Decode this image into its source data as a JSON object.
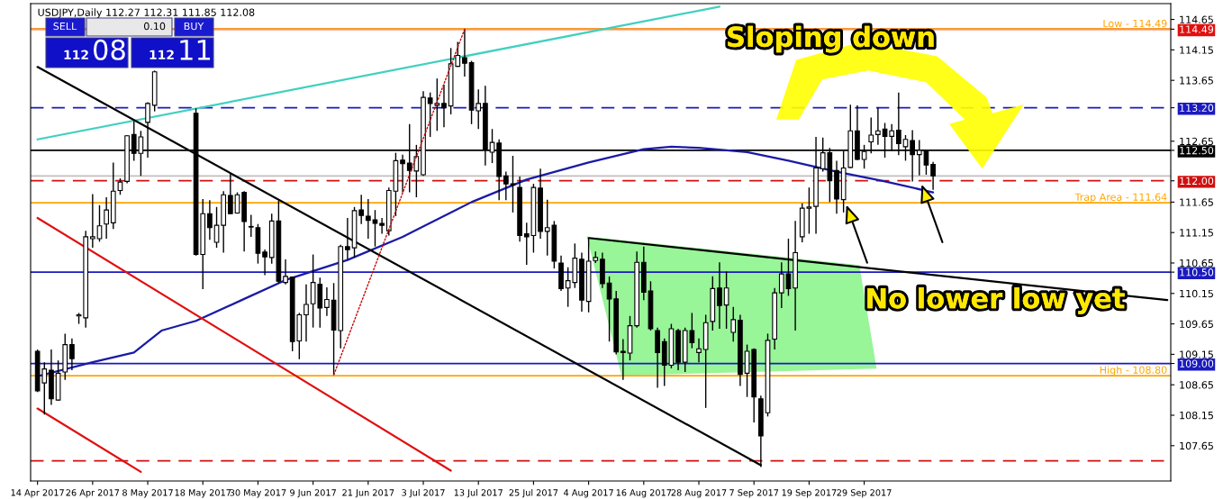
{
  "chart_data": {
    "type": "candlestick",
    "title": "USDJPY,Daily 112.27 112.31 111.85 112.08",
    "categories": [
      "14 Apr 2017",
      null,
      null,
      null,
      null,
      null,
      null,
      null,
      "26 Apr 2017",
      null,
      null,
      null,
      null,
      null,
      null,
      null,
      "8 May 2017",
      null,
      null,
      null,
      null,
      null,
      null,
      null,
      "18 May 2017",
      null,
      null,
      null,
      null,
      null,
      null,
      null,
      "30 May 2017",
      null,
      null,
      null,
      null,
      null,
      null,
      null,
      "9 Jun 2017",
      null,
      null,
      null,
      null,
      null,
      null,
      null,
      "21 Jun 2017",
      null,
      null,
      null,
      null,
      null,
      null,
      null,
      "3 Jul 2017",
      null,
      null,
      null,
      null,
      null,
      null,
      null,
      "13 Jul 2017",
      null,
      null,
      null,
      null,
      null,
      null,
      null,
      "25 Jul 2017",
      null,
      null,
      null,
      null,
      null,
      null,
      null,
      "4 Aug 2017",
      null,
      null,
      null,
      null,
      null,
      null,
      null,
      "16 Aug 2017",
      null,
      null,
      null,
      null,
      null,
      null,
      null,
      "28 Aug 2017",
      null,
      null,
      null,
      null,
      null,
      null,
      null,
      "7 Sep 2017",
      null,
      null,
      null,
      null,
      null,
      null,
      null,
      "19 Sep 2017",
      null,
      null,
      null,
      null,
      null,
      null,
      null,
      "29 Sep 2017",
      null,
      null,
      null,
      null,
      null,
      null,
      null,
      null,
      null,
      null,
      null,
      null,
      null,
      null,
      null,
      null,
      null,
      null,
      null,
      null,
      null,
      null,
      null,
      null,
      null,
      null,
      null,
      null,
      null,
      null,
      null,
      null,
      null,
      null,
      null,
      null,
      null,
      null,
      null,
      null,
      null,
      null,
      null,
      null
    ],
    "ohlc": [
      [
        109.2,
        109.23,
        108.53,
        108.55
      ],
      [
        108.68,
        109.02,
        108.16,
        108.91
      ],
      [
        108.89,
        109.23,
        108.32,
        108.42
      ],
      [
        108.4,
        109.05,
        108.39,
        108.84
      ],
      [
        108.86,
        109.49,
        108.73,
        109.31
      ],
      [
        109.31,
        109.41,
        108.89,
        109.08
      ],
      [
        109.78,
        109.83,
        109.65,
        109.8
      ],
      [
        109.75,
        111.18,
        109.59,
        111.08
      ],
      [
        111.05,
        111.78,
        110.9,
        111.08
      ],
      [
        111.05,
        111.6,
        111.0,
        111.26
      ],
      [
        111.29,
        111.73,
        111.05,
        111.52
      ],
      [
        111.31,
        112.3,
        111.21,
        111.83
      ],
      [
        111.84,
        112.04,
        111.77,
        111.98
      ],
      [
        111.99,
        112.75,
        111.96,
        112.74
      ],
      [
        112.76,
        112.98,
        112.33,
        112.45
      ],
      [
        112.45,
        112.82,
        112.08,
        112.72
      ],
      [
        112.96,
        113.29,
        112.38,
        113.27
      ],
      [
        113.24,
        113.81,
        113.14,
        113.79
      ],
      null,
      null,
      null,
      null,
      null,
      [
        113.11,
        113.19,
        110.77,
        110.79
      ],
      [
        110.79,
        111.7,
        110.22,
        111.46
      ],
      [
        111.46,
        111.68,
        111.03,
        111.23
      ],
      [
        110.99,
        111.57,
        110.9,
        111.27
      ],
      [
        111.27,
        111.83,
        110.82,
        111.77
      ],
      [
        111.76,
        112.12,
        111.46,
        111.46
      ],
      [
        111.47,
        111.81,
        111.46,
        111.77
      ],
      [
        111.81,
        111.83,
        110.84,
        111.33
      ],
      [
        111.25,
        111.44,
        111.08,
        111.24
      ],
      [
        111.23,
        111.29,
        110.64,
        110.81
      ],
      [
        110.83,
        110.87,
        110.45,
        110.75
      ],
      [
        110.74,
        111.46,
        110.64,
        111.34
      ],
      [
        111.34,
        111.67,
        110.32,
        110.35
      ],
      [
        110.33,
        110.71,
        110.3,
        110.43
      ],
      [
        110.42,
        110.43,
        109.2,
        109.36
      ],
      [
        109.37,
        109.83,
        109.07,
        109.8
      ],
      [
        109.8,
        110.3,
        109.36,
        109.97
      ],
      [
        109.98,
        110.79,
        109.59,
        110.33
      ],
      [
        110.3,
        110.41,
        109.59,
        109.91
      ],
      [
        109.92,
        110.25,
        109.78,
        110.05
      ],
      [
        110.04,
        110.32,
        108.81,
        109.55
      ],
      [
        109.54,
        110.95,
        109.25,
        110.92
      ],
      [
        110.92,
        111.39,
        110.71,
        110.87
      ],
      [
        110.9,
        111.57,
        110.74,
        111.51
      ],
      [
        111.52,
        111.77,
        111.29,
        111.43
      ],
      [
        111.42,
        111.7,
        111.05,
        111.35
      ],
      [
        111.36,
        111.52,
        110.92,
        111.3
      ],
      [
        111.3,
        111.39,
        111.13,
        111.27
      ],
      [
        111.18,
        111.89,
        111.1,
        111.84
      ],
      [
        111.83,
        112.46,
        111.42,
        112.33
      ],
      [
        112.34,
        112.43,
        111.81,
        112.28
      ],
      [
        112.29,
        112.93,
        111.81,
        112.17
      ],
      [
        112.16,
        112.59,
        111.73,
        112.4
      ],
      [
        112.1,
        113.47,
        112.08,
        113.37
      ],
      [
        113.36,
        113.45,
        112.72,
        113.27
      ],
      [
        113.24,
        113.68,
        112.82,
        113.27
      ],
      [
        113.27,
        113.58,
        112.88,
        113.2
      ],
      [
        113.23,
        114.18,
        113.09,
        113.92
      ],
      [
        113.88,
        114.28,
        113.87,
        114.06
      ],
      [
        114.02,
        114.49,
        113.71,
        113.93
      ],
      [
        113.94,
        113.97,
        112.93,
        113.16
      ],
      [
        113.15,
        113.5,
        112.85,
        113.27
      ],
      [
        113.27,
        113.56,
        112.25,
        112.52
      ],
      [
        112.47,
        112.85,
        112.29,
        112.63
      ],
      [
        112.62,
        112.68,
        111.68,
        112.07
      ],
      [
        112.08,
        112.15,
        111.68,
        111.95
      ],
      [
        111.95,
        112.41,
        111.48,
        111.93
      ],
      [
        111.89,
        112.07,
        111.0,
        111.1
      ],
      [
        111.13,
        111.31,
        110.62,
        111.08
      ],
      [
        111.1,
        111.95,
        110.82,
        111.89
      ],
      [
        111.88,
        112.2,
        111.05,
        111.17
      ],
      [
        111.17,
        111.69,
        110.77,
        111.23
      ],
      [
        111.27,
        111.34,
        110.56,
        110.68
      ],
      [
        110.65,
        110.77,
        110.19,
        110.23
      ],
      [
        110.24,
        110.58,
        109.93,
        110.36
      ],
      [
        110.33,
        110.97,
        110.24,
        110.73
      ],
      [
        110.71,
        110.82,
        109.85,
        110.04
      ],
      [
        110.02,
        111.05,
        109.84,
        110.68
      ],
      [
        110.69,
        110.84,
        110.65,
        110.74
      ],
      [
        110.71,
        110.82,
        110.24,
        110.31
      ],
      [
        110.32,
        110.43,
        109.36,
        110.06
      ],
      [
        110.06,
        110.19,
        109.15,
        109.19
      ],
      [
        109.2,
        109.4,
        108.73,
        109.18
      ],
      [
        109.17,
        109.78,
        109.05,
        109.62
      ],
      [
        109.62,
        110.84,
        109.59,
        110.66
      ],
      [
        110.66,
        110.92,
        110.04,
        110.17
      ],
      [
        110.19,
        110.35,
        109.54,
        109.57
      ],
      [
        109.54,
        109.59,
        108.6,
        109.18
      ],
      [
        109.36,
        109.41,
        108.63,
        108.97
      ],
      [
        108.97,
        109.65,
        108.92,
        109.57
      ],
      [
        109.54,
        109.57,
        108.89,
        109.02
      ],
      [
        109.02,
        109.59,
        108.86,
        109.54
      ],
      [
        109.54,
        109.83,
        109.25,
        109.34
      ],
      [
        109.18,
        109.41,
        109.02,
        109.24
      ],
      [
        109.23,
        109.8,
        108.27,
        109.67
      ],
      [
        109.69,
        110.43,
        109.54,
        110.23
      ],
      [
        110.24,
        110.66,
        109.57,
        109.95
      ],
      [
        109.96,
        110.51,
        109.57,
        110.24
      ],
      [
        109.51,
        109.93,
        109.36,
        109.72
      ],
      [
        109.71,
        109.8,
        108.63,
        108.82
      ],
      [
        108.84,
        109.31,
        108.45,
        109.2
      ],
      [
        109.23,
        109.25,
        108.03,
        108.45
      ],
      [
        108.42,
        108.47,
        107.3,
        107.81
      ],
      [
        108.19,
        109.49,
        108.13,
        109.38
      ],
      [
        109.4,
        110.24,
        109.23,
        110.16
      ],
      [
        110.16,
        110.66,
        109.91,
        110.47
      ],
      [
        110.47,
        111.05,
        110.11,
        110.23
      ],
      [
        110.24,
        111.34,
        109.54,
        110.82
      ],
      [
        111.08,
        111.63,
        110.99,
        111.55
      ],
      [
        111.55,
        111.89,
        111.13,
        111.57
      ],
      [
        111.58,
        112.72,
        111.13,
        112.21
      ],
      [
        112.2,
        112.71,
        112.15,
        112.46
      ],
      [
        112.46,
        112.54,
        111.65,
        112.0
      ],
      [
        112.17,
        112.33,
        111.46,
        111.7
      ],
      [
        111.69,
        112.49,
        111.48,
        112.21
      ],
      [
        112.22,
        113.25,
        112.21,
        112.82
      ],
      [
        112.82,
        113.24,
        112.34,
        112.35
      ],
      [
        112.35,
        112.59,
        112.2,
        112.48
      ],
      [
        112.64,
        113.04,
        112.45,
        112.75
      ],
      [
        112.76,
        113.2,
        112.59,
        112.82
      ],
      [
        112.85,
        112.95,
        112.38,
        112.73
      ],
      [
        112.73,
        112.93,
        112.49,
        112.82
      ],
      [
        112.83,
        113.45,
        112.42,
        112.61
      ],
      [
        112.56,
        112.75,
        112.33,
        112.68
      ],
      [
        112.66,
        112.83,
        111.99,
        112.43
      ],
      [
        112.43,
        112.67,
        112.09,
        112.5
      ],
      [
        112.49,
        112.51,
        112.1,
        112.26
      ],
      [
        112.27,
        112.31,
        111.85,
        112.08
      ],
      null,
      null,
      null,
      null,
      null,
      null,
      null,
      null,
      null,
      null,
      null,
      null,
      null,
      null,
      null,
      null,
      null,
      null,
      null,
      null,
      null,
      null,
      null,
      null,
      null,
      null,
      null,
      null,
      null,
      null,
      null,
      null,
      null,
      null
    ],
    "series": [
      {
        "type": "line",
        "color": "#1a1aa6",
        "values": [
          108.79,
          null,
          null,
          null,
          null,
          null,
          null,
          null,
          109.02,
          null,
          null,
          null,
          null,
          null,
          109.18,
          null,
          null,
          null,
          109.54,
          null,
          null,
          null,
          null,
          109.7,
          null,
          null,
          null,
          null,
          null,
          null,
          110.06,
          null,
          null,
          null,
          null,
          null,
          110.37,
          null,
          null,
          null,
          null,
          null,
          null,
          null,
          null,
          110.7,
          null,
          null,
          null,
          null,
          null,
          null,
          null,
          111.08,
          null,
          null,
          null,
          null,
          null,
          null,
          null,
          null,
          null,
          111.65,
          null,
          null,
          null,
          null,
          null,
          null,
          null,
          112.02,
          null,
          null,
          null,
          null,
          null,
          null,
          null,
          null,
          112.3,
          null,
          null,
          null,
          null,
          null,
          null,
          null,
          112.52,
          null,
          null,
          null,
          112.56,
          null,
          null,
          null,
          112.54,
          null,
          null,
          null,
          null,
          null,
          null,
          112.47,
          null,
          null,
          null,
          null,
          null,
          112.33,
          null,
          null,
          null,
          null,
          null,
          null,
          112.15,
          null,
          null,
          null,
          null,
          null,
          null,
          111.99,
          null,
          null,
          null,
          null,
          null,
          null,
          111.81,
          null,
          null,
          null,
          null,
          null,
          null,
          null,
          null,
          null,
          null,
          null,
          null,
          null,
          null,
          null,
          null,
          null,
          null,
          null,
          null,
          null,
          null,
          null,
          null,
          null,
          null,
          null,
          null,
          null,
          null,
          null,
          null,
          null,
          null
        ]
      },
      {
        "type": "line",
        "color": "#40d0c0",
        "values": [
          112.68,
          null,
          null,
          null,
          null,
          null,
          null,
          null,
          null,
          null,
          null,
          null,
          null,
          null,
          null,
          null,
          null,
          null,
          null,
          null,
          null,
          null,
          null,
          null,
          null,
          null,
          null,
          null,
          null,
          null,
          null,
          null,
          null,
          null,
          null,
          null,
          null,
          null,
          null,
          null,
          null,
          null,
          null,
          null,
          null,
          null,
          null,
          null,
          null,
          null,
          null,
          null,
          null,
          null,
          null,
          null,
          null,
          null,
          null,
          null,
          null,
          null,
          null,
          null,
          null,
          null,
          null,
          null,
          null,
          null,
          null,
          null,
          null,
          null,
          null,
          null,
          null,
          null,
          null,
          null,
          null,
          null,
          null,
          null,
          null,
          null,
          null,
          null,
          null,
          null,
          null,
          null,
          null,
          null,
          null,
          null,
          null,
          null,
          null,
          114.86,
          null,
          null,
          null,
          null,
          null,
          null,
          null,
          null,
          null,
          null,
          null,
          null,
          null,
          null,
          null,
          null,
          null,
          null,
          null,
          null,
          null,
          null,
          null,
          null,
          null,
          null,
          null,
          null,
          null,
          null,
          null,
          null,
          null,
          null,
          null,
          null,
          null,
          null,
          null,
          null,
          null,
          null,
          null,
          null,
          null,
          null,
          null,
          null,
          null,
          null,
          null,
          null,
          null,
          null,
          null,
          null,
          null,
          null,
          null,
          null,
          null,
          null,
          null,
          null,
          null
        ]
      },
      {
        "type": "line",
        "color": "#000000",
        "values": [
          113.87,
          null,
          null,
          null,
          null,
          null,
          null,
          null,
          null,
          null,
          null,
          null,
          null,
          null,
          null,
          null,
          null,
          null,
          null,
          null,
          null,
          null,
          null,
          null,
          null,
          null,
          null,
          null,
          null,
          null,
          null,
          null,
          null,
          null,
          null,
          null,
          null,
          null,
          null,
          null,
          null,
          null,
          null,
          null,
          null,
          null,
          null,
          null,
          null,
          null,
          null,
          null,
          null,
          null,
          null,
          null,
          null,
          null,
          null,
          null,
          null,
          null,
          null,
          null,
          null,
          null,
          null,
          null,
          null,
          null,
          null,
          null,
          null,
          null,
          null,
          null,
          null,
          null,
          null,
          null,
          null,
          null,
          null,
          null,
          null,
          null,
          null,
          null,
          null,
          null,
          null,
          null,
          null,
          null,
          null,
          null,
          null,
          null,
          null,
          null,
          null,
          null,
          null,
          null,
          null,
          107.33,
          null,
          null,
          null,
          null,
          null,
          null,
          null,
          null,
          null,
          null,
          null,
          null,
          null,
          null,
          null,
          null,
          null,
          null,
          null,
          null,
          null,
          null,
          null,
          null,
          null,
          null,
          null,
          null,
          null,
          null,
          null,
          null,
          null,
          null,
          null,
          null,
          null,
          null,
          null,
          null,
          null,
          null,
          null,
          null,
          null,
          null,
          null,
          null,
          null,
          null,
          null,
          null,
          null,
          null,
          null,
          null,
          null,
          null,
          null
        ]
      },
      {
        "type": "line",
        "color": "#e01010",
        "values": [
          111.39,
          null,
          null,
          null,
          null,
          null,
          null,
          null,
          null,
          null,
          null,
          null,
          null,
          null,
          null,
          null,
          null,
          null,
          null,
          null,
          null,
          null,
          null,
          null,
          null,
          null,
          null,
          null,
          null,
          null,
          null,
          null,
          null,
          null,
          null,
          null,
          null,
          null,
          null,
          null,
          null,
          null,
          null,
          null,
          null,
          null,
          null,
          null,
          null,
          null,
          null,
          null,
          null,
          null,
          null,
          null,
          null,
          null,
          null,
          null,
          107.24,
          null,
          null,
          null,
          null,
          null,
          null,
          null,
          null,
          null,
          null,
          null,
          null,
          null,
          null,
          null,
          null,
          null,
          null,
          null,
          null,
          null,
          null,
          null,
          null,
          null,
          null,
          null,
          null,
          null,
          null,
          null,
          null,
          null,
          null,
          null,
          null,
          null,
          null,
          null,
          null,
          null,
          null,
          null,
          null,
          null,
          null,
          null,
          null,
          null,
          null,
          null,
          null,
          null,
          null,
          null,
          null,
          null,
          null,
          null,
          null,
          null,
          null,
          null,
          null,
          null,
          null,
          null,
          null,
          null,
          null,
          null,
          null,
          null,
          null,
          null,
          null,
          null,
          null,
          null,
          null,
          null,
          null,
          null,
          null,
          null,
          null,
          null,
          null,
          null,
          null,
          null,
          null,
          null,
          null,
          null,
          null,
          null,
          null,
          null,
          null,
          null,
          null,
          null,
          null
        ]
      },
      {
        "type": "line",
        "color": "#e01010",
        "values": [
          108.26,
          null,
          null,
          null,
          null,
          null,
          null,
          null,
          null,
          null,
          null,
          null,
          null,
          null,
          null,
          107.22,
          null,
          null,
          null,
          null,
          null,
          null,
          null,
          null,
          null,
          null,
          null,
          null,
          null,
          null,
          null,
          null,
          null,
          null,
          null,
          null,
          null,
          null,
          null,
          null,
          null,
          null,
          null,
          null,
          null,
          null,
          null,
          null,
          null,
          null,
          null,
          null,
          null,
          null,
          null,
          null,
          null,
          null,
          null,
          null,
          null,
          null,
          null,
          null,
          null,
          null,
          null,
          null,
          null,
          null,
          null,
          null,
          null,
          null,
          null,
          null,
          null,
          null,
          null,
          null,
          null,
          null,
          null,
          null,
          null,
          null,
          null,
          null,
          null,
          null,
          null,
          null,
          null,
          null,
          null,
          null,
          null,
          null,
          null,
          null,
          null,
          null,
          null,
          null,
          null,
          null,
          null,
          null,
          null,
          null,
          null,
          null,
          null,
          null,
          null,
          null,
          null,
          null,
          null,
          null,
          null,
          null,
          null,
          null,
          null,
          null,
          null,
          null,
          null,
          null,
          null,
          null,
          null,
          null,
          null,
          null,
          null,
          null,
          null,
          null,
          null,
          null,
          null,
          null,
          null,
          null,
          null,
          null,
          null,
          null,
          null,
          null,
          null,
          null,
          null,
          null,
          null,
          null,
          null,
          null,
          null,
          null,
          null,
          null,
          null
        ]
      },
      {
        "type": "line",
        "color": "#cc0000",
        "line_style": "dotted",
        "values": [
          null,
          null,
          null,
          null,
          null,
          null,
          null,
          null,
          null,
          null,
          null,
          null,
          null,
          null,
          null,
          null,
          null,
          null,
          null,
          null,
          null,
          null,
          null,
          null,
          null,
          null,
          null,
          null,
          null,
          null,
          null,
          null,
          null,
          null,
          null,
          null,
          null,
          null,
          null,
          null,
          null,
          null,
          null,
          108.81,
          null,
          null,
          null,
          null,
          null,
          null,
          null,
          null,
          null,
          null,
          null,
          null,
          null,
          null,
          null,
          null,
          null,
          null,
          114.49,
          null,
          null,
          null,
          null,
          null,
          null,
          null,
          null,
          null,
          null,
          null,
          null,
          null,
          null,
          null,
          null,
          null,
          null,
          null,
          null,
          null,
          null,
          null,
          null,
          null,
          null,
          null,
          null,
          null,
          null,
          null,
          null,
          null,
          null,
          null,
          null,
          null,
          null,
          null,
          null,
          null,
          null,
          null,
          null,
          null,
          null,
          null,
          null,
          null,
          null,
          null,
          null,
          null,
          null,
          null,
          null,
          null,
          null,
          null,
          null,
          null,
          null,
          null,
          null,
          null,
          null,
          null,
          null,
          null,
          null,
          null,
          null,
          null,
          null,
          null,
          null,
          null,
          null,
          null,
          null,
          null,
          null,
          null,
          null,
          null,
          null,
          null,
          null,
          null,
          null,
          null,
          null,
          null,
          null,
          null,
          null,
          null,
          null,
          null,
          null,
          null,
          null
        ]
      },
      {
        "type": "line",
        "color": "#000000",
        "values": [
          null,
          null,
          null,
          null,
          null,
          null,
          null,
          null,
          null,
          null,
          null,
          null,
          null,
          null,
          null,
          null,
          null,
          null,
          null,
          null,
          null,
          null,
          null,
          null,
          null,
          null,
          null,
          null,
          null,
          null,
          null,
          null,
          null,
          null,
          null,
          null,
          null,
          null,
          null,
          null,
          null,
          null,
          null,
          null,
          null,
          null,
          null,
          null,
          null,
          null,
          null,
          null,
          null,
          null,
          null,
          null,
          null,
          null,
          null,
          null,
          null,
          null,
          null,
          null,
          null,
          null,
          null,
          null,
          null,
          null,
          null,
          null,
          null,
          null,
          null,
          null,
          null,
          null,
          null,
          null,
          111.06,
          null,
          null,
          null,
          null,
          null,
          null,
          null,
          null,
          null,
          null,
          null,
          null,
          null,
          null,
          null,
          null,
          null,
          null,
          null,
          null,
          null,
          null,
          null,
          null,
          null,
          null,
          null,
          null,
          null,
          null,
          null,
          null,
          null,
          null,
          null,
          null,
          null,
          null,
          null,
          null,
          null,
          null,
          null,
          null,
          null,
          null,
          null,
          null,
          null,
          null,
          null,
          null,
          null,
          null,
          null,
          null,
          null,
          null,
          null,
          null,
          null,
          null,
          null,
          null,
          null,
          null,
          null,
          null,
          null,
          null,
          null,
          null,
          null,
          null,
          null,
          null,
          null,
          null,
          null,
          null,
          null,
          null,
          null,
          110.04
        ]
      }
    ],
    "ref_lines": [
      {
        "axis": "y",
        "value": 114.49,
        "color": "#e01010"
      },
      {
        "axis": "y",
        "value": 114.49,
        "label": "Low - 114.49",
        "color": "#ffa500"
      },
      {
        "axis": "y",
        "value": 113.2,
        "color": "#1a1ac0",
        "line_style": "dashed"
      },
      {
        "axis": "y",
        "value": 112.5,
        "color": "#000000"
      },
      {
        "axis": "y",
        "value": 112.08,
        "color": "#c0c0c0"
      },
      {
        "axis": "y",
        "value": 112.0,
        "color": "#d01010",
        "line_style": "dashed"
      },
      {
        "axis": "y",
        "value": 111.64,
        "label": "Trap Area - 111.64",
        "color": "#ffa500"
      },
      {
        "axis": "y",
        "value": 110.5,
        "color": "#1a1ac0"
      },
      {
        "axis": "y",
        "value": 109.0,
        "color": "#1a1ac0"
      },
      {
        "axis": "y",
        "value": 108.8,
        "label": "High - 108.80",
        "color": "#ffa500"
      },
      {
        "axis": "y",
        "value": 107.4,
        "color": "#d01010",
        "line_style": "dashed"
      }
    ],
    "ylim": [
      107.07,
      114.91
    ],
    "yticks": [
      114.65,
      {
        "value": 114.49,
        "label": "114.49"
      },
      114.15,
      113.65,
      {
        "value": 113.2,
        "label": "113.20"
      },
      112.65,
      {
        "value": 112.5,
        "label": "112.50"
      },
      {
        "value": 112.0,
        "label": "112.00"
      },
      111.65,
      111.15,
      110.65,
      {
        "value": 110.5,
        "label": "110.50"
      },
      110.15,
      109.65,
      109.15,
      {
        "value": 109.0,
        "label": "109.00"
      },
      108.65,
      108.15,
      107.65
    ],
    "annotations": [
      "Sloping down",
      "No lower low yet",
      "SELL",
      "0.10",
      "BUY",
      "112",
      "08",
      "112",
      "11"
    ]
  }
}
